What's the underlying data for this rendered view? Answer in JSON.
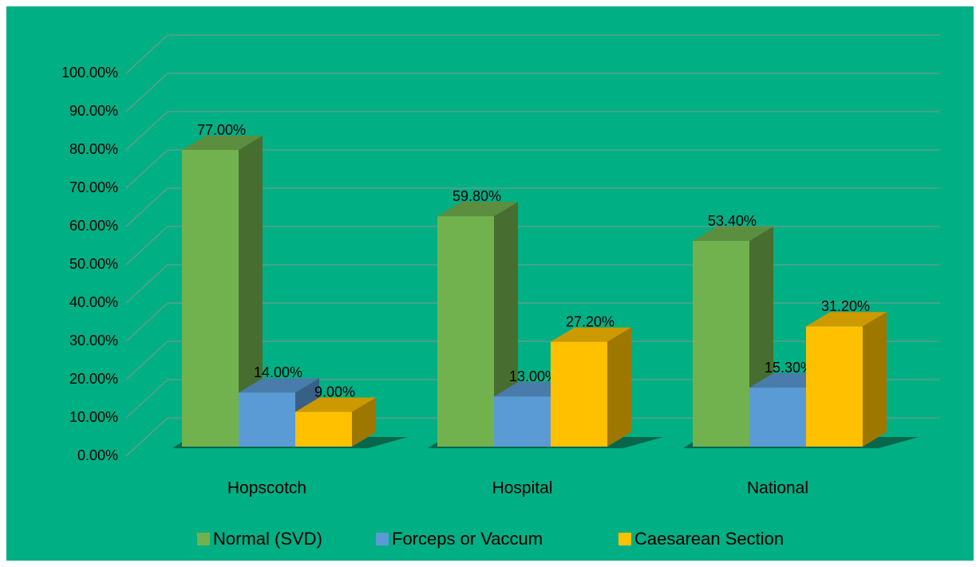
{
  "chart_data": {
    "type": "bar3d",
    "categories": [
      "Hopscotch",
      "Hospital",
      "National"
    ],
    "series": [
      {
        "name": "Normal (SVD)",
        "color": "#72b24e",
        "values": [
          77,
          59.8,
          53.4
        ],
        "value_labels": [
          "77.00%",
          "59.80%",
          "53.40%"
        ]
      },
      {
        "name": "Forceps or Vaccum",
        "color": "#5b9bd5",
        "values": [
          14,
          13,
          15.3
        ],
        "value_labels": [
          "14.00%",
          "13.00%",
          "15.30%"
        ]
      },
      {
        "name": "Caesarean Section",
        "color": "#ffc000",
        "values": [
          9,
          27.2,
          31.2
        ],
        "value_labels": [
          "9.00%",
          "27.20%",
          "31.20%"
        ]
      }
    ],
    "ylim": [
      0,
      100
    ],
    "yticks": [
      {
        "value": 0,
        "label": "0.00%"
      },
      {
        "value": 10,
        "label": "10.00%"
      },
      {
        "value": 20,
        "label": "20.00%"
      },
      {
        "value": 30,
        "label": "30.00%"
      },
      {
        "value": 40,
        "label": "40.00%"
      },
      {
        "value": 50,
        "label": "50.00%"
      },
      {
        "value": 60,
        "label": "60.00%"
      },
      {
        "value": 70,
        "label": "70.00%"
      },
      {
        "value": 80,
        "label": "80.00%"
      },
      {
        "value": 90,
        "label": "90.00%"
      },
      {
        "value": 100,
        "label": "100.00%"
      }
    ],
    "grid": true,
    "legend": "bottom"
  }
}
